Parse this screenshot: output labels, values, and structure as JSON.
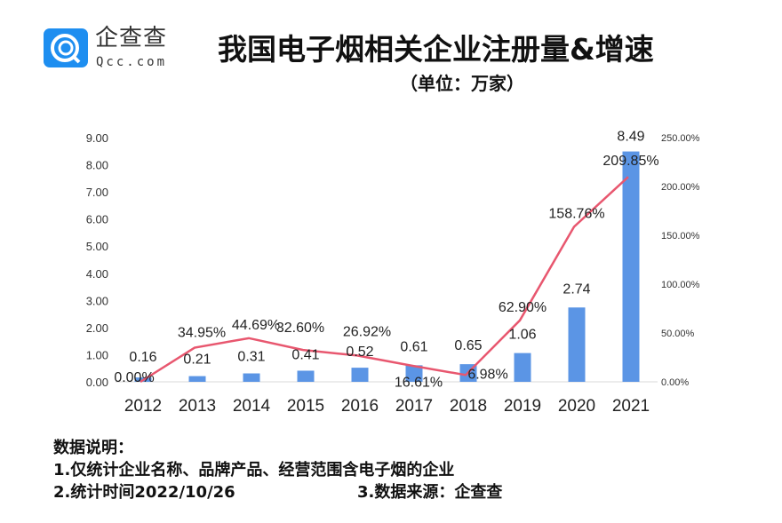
{
  "logo": {
    "name_cn": "企查查",
    "name_en": "Qcc.com",
    "color": "#1e8ef0"
  },
  "chart_data": {
    "type": "bar+line",
    "title": "我国电子烟相关企业注册量&增速",
    "subtitle": "（单位：万家）",
    "categories": [
      "2012",
      "2013",
      "2014",
      "2015",
      "2016",
      "2017",
      "2018",
      "2019",
      "2020",
      "2021"
    ],
    "series": [
      {
        "type": "bar",
        "axis": "left",
        "color": "#5b95e5",
        "values": [
          0.16,
          0.21,
          0.31,
          0.41,
          0.52,
          0.61,
          0.65,
          1.06,
          2.74,
          8.49
        ],
        "labels": [
          "0.16",
          "0.21",
          "0.31",
          "0.41",
          "0.52",
          "0.61",
          "0.65",
          "1.06",
          "2.74",
          "8.49"
        ]
      },
      {
        "type": "line",
        "axis": "right",
        "color": "#e8576f",
        "values": [
          0.0,
          34.95,
          44.69,
          32.6,
          26.92,
          16.61,
          6.98,
          62.9,
          158.76,
          209.85
        ],
        "labels": [
          "0.00%",
          "34.95%",
          "44.69%",
          "32.60%",
          "26.92%",
          "16.61%",
          "6.98%",
          "62.90%",
          "158.76%",
          "209.85%"
        ]
      }
    ],
    "left_axis": {
      "ylim": [
        0,
        9
      ],
      "ticks": [
        "0.00",
        "1.00",
        "2.00",
        "3.00",
        "4.00",
        "5.00",
        "6.00",
        "7.00",
        "8.00",
        "9.00"
      ]
    },
    "right_axis": {
      "ylim": [
        0,
        250
      ],
      "ticks": [
        "0.00%",
        "50.00%",
        "100.00%",
        "150.00%",
        "200.00%",
        "250.00%"
      ]
    },
    "grid": false,
    "legend": "none"
  },
  "notes": {
    "heading": "数据说明：",
    "line1": "1.仅统计企业名称、品牌产品、经营范围含电子烟的企业",
    "line2": "2.统计时间2022/10/26",
    "source": "3.数据来源：企查查"
  }
}
